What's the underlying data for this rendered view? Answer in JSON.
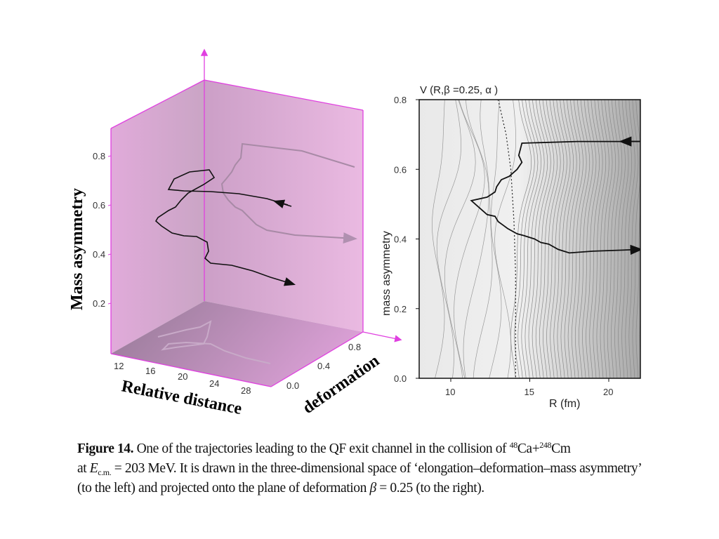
{
  "figure": {
    "left_panel": {
      "y_axis_label": "Mass asymmetry",
      "x_axis_label": "Relative distance",
      "z_axis_label": "deformation",
      "y_ticks": [
        "0.2",
        "0.4",
        "0.6",
        "0.8"
      ],
      "x_ticks": [
        "12",
        "16",
        "20",
        "24",
        "28"
      ],
      "z_ticks": [
        "0.0",
        "0.4",
        "0.8"
      ],
      "colors": {
        "plane": "#d89ad0",
        "axis": "#e040e0",
        "trajectory": "#111111",
        "projection": "#9a8a9a"
      }
    },
    "right_panel": {
      "title": "V (R,β =0.25, α )",
      "x_axis_label": "R  (fm)",
      "y_axis_label": "mass  asymmetry",
      "x_ticks": [
        "10",
        "15",
        "20"
      ],
      "y_ticks": [
        "0.0",
        "0.2",
        "0.4",
        "0.6",
        "0.8"
      ]
    },
    "caption": {
      "label": "Figure 14.",
      "text1": " One of the trajectories leading to the QF exit channel in the collision of ",
      "sup1": "48",
      "el1": "Ca+",
      "sup2": "248",
      "el2": "Cm",
      "text2a": "at ",
      "E": "E",
      "sub": "c.m.",
      "text2b": " = 203 MeV. It is drawn in the three-dimensional space of ‘elongation–deformation–mass asymmetry’ (to the left) and projected onto the plane of deformation ",
      "beta": "β",
      "text3": " = 0.25 (to the right)."
    }
  },
  "chart_data": [
    {
      "type": "line",
      "title": "",
      "xlabel": "Relative distance",
      "ylabel": "Mass asymmetry",
      "zlabel": "deformation",
      "x_ticks": [
        12,
        16,
        20,
        24,
        28
      ],
      "y_ticks": [
        0.2,
        0.4,
        0.6,
        0.8
      ],
      "z_ticks": [
        0.0,
        0.4,
        0.8
      ],
      "series": [
        {
          "name": "trajectory (3D)",
          "description": "enters at large R, mass asymmetry ~0.65, loops near R~14-18, exits at mass asymmetry ~0.37"
        }
      ]
    },
    {
      "type": "line",
      "title": "V (R,β =0.25, α )",
      "xlabel": "R  (fm)",
      "ylabel": "mass  asymmetry",
      "xlim": [
        8,
        22
      ],
      "ylim": [
        0.0,
        0.8
      ],
      "x_ticks": [
        10,
        15,
        20
      ],
      "y_ticks": [
        0.0,
        0.2,
        0.4,
        0.6,
        0.8
      ],
      "series": [
        {
          "name": "trajectory",
          "x": [
            22,
            18,
            14.5,
            14.3,
            14.5,
            14.2,
            13.7,
            13.2,
            12.9,
            12.8,
            12.3,
            11.3,
            11.8,
            12.3,
            12.8,
            13.0,
            13.3,
            13.6,
            14.2,
            14.6,
            15.3,
            15.7,
            16.2,
            16.8,
            17.5,
            19,
            22
          ],
          "y": [
            0.68,
            0.68,
            0.675,
            0.64,
            0.62,
            0.6,
            0.58,
            0.57,
            0.55,
            0.535,
            0.52,
            0.51,
            0.49,
            0.47,
            0.465,
            0.45,
            0.44,
            0.43,
            0.415,
            0.41,
            0.4,
            0.39,
            0.385,
            0.37,
            0.36,
            0.365,
            0.37
          ]
        },
        {
          "name": "ridge (dotted)",
          "x": [
            13.0,
            13.5,
            13.8,
            14.0,
            14.1,
            14.1
          ],
          "y": [
            0.8,
            0.7,
            0.6,
            0.45,
            0.3,
            0.0
          ]
        }
      ]
    }
  ]
}
